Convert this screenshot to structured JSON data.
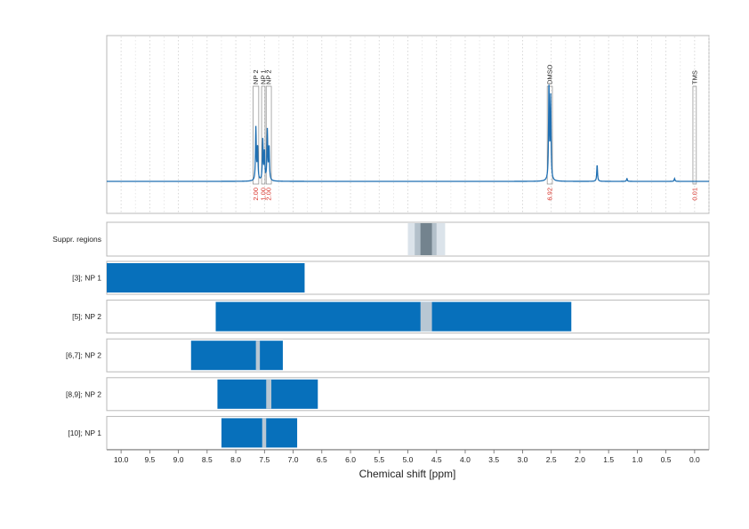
{
  "chart_data": {
    "type": "nmr-spectrum",
    "x_axis": {
      "label": "Chemical shift [ppm]",
      "range": [
        10.25,
        -0.25
      ],
      "ticks": [
        "10.0",
        "9.5",
        "9.0",
        "8.5",
        "8.0",
        "7.5",
        "7.0",
        "6.5",
        "6.0",
        "5.5",
        "5.0",
        "4.5",
        "4.0",
        "3.5",
        "3.0",
        "2.5",
        "2.0",
        "1.5",
        "1.0",
        "0.5",
        "0.0"
      ],
      "reversed": true
    },
    "spectrum": {
      "color": "#1f6fb2",
      "baseline": 0,
      "peaks": [
        {
          "ppm": 7.65,
          "height": 0.55
        },
        {
          "ppm": 7.62,
          "height": 0.35
        },
        {
          "ppm": 7.53,
          "height": 0.42
        },
        {
          "ppm": 7.5,
          "height": 0.3
        },
        {
          "ppm": 7.45,
          "height": 0.52
        },
        {
          "ppm": 7.42,
          "height": 0.35
        },
        {
          "ppm": 2.54,
          "height": 1.0
        },
        {
          "ppm": 2.51,
          "height": 0.85
        },
        {
          "ppm": 1.7,
          "height": 0.17
        },
        {
          "ppm": 1.18,
          "height": 0.03
        },
        {
          "ppm": 0.35,
          "height": 0.03
        }
      ]
    },
    "integrals": [
      {
        "label": "NP 2",
        "value": "2.00",
        "from": 7.7,
        "to": 7.6
      },
      {
        "label": "NP 1",
        "value": "1.00",
        "from": 7.55,
        "to": 7.49
      },
      {
        "label": "NP 2",
        "value": "2.00",
        "from": 7.47,
        "to": 7.38
      },
      {
        "label": "DMSO",
        "value": "6.92",
        "from": 2.57,
        "to": 2.48
      },
      {
        "label": "TMS",
        "value": "0.01",
        "from": 0.03,
        "to": -0.03
      }
    ],
    "suppression": {
      "label": "Suppr. regions",
      "bands": [
        {
          "from": 5.0,
          "to": 4.35,
          "shade": "#dbe3ea"
        },
        {
          "from": 4.88,
          "to": 4.5,
          "shade": "#b3c0ca"
        },
        {
          "from": 4.78,
          "to": 4.58,
          "shade": "#73838e"
        }
      ]
    },
    "regions": [
      {
        "label": "[3]; NP 1",
        "from": 10.25,
        "to": 6.8,
        "gaps": []
      },
      {
        "label": "[5]; NP 2",
        "from": 8.35,
        "to": 2.15,
        "gaps": [
          [
            4.78,
            4.58
          ]
        ]
      },
      {
        "label": "[6,7]; NP 2",
        "from": 8.78,
        "to": 7.18,
        "gaps": [
          [
            7.65,
            7.58
          ]
        ]
      },
      {
        "label": "[8,9]; NP 2",
        "from": 8.32,
        "to": 6.57,
        "gaps": [
          [
            7.47,
            7.38
          ]
        ]
      },
      {
        "label": "[10]; NP 1",
        "from": 8.25,
        "to": 6.93,
        "gaps": [
          [
            7.54,
            7.47
          ]
        ]
      }
    ],
    "bar_color": "#0770bb",
    "gap_color": "#b8c7d3",
    "integral_value_color": "#d9352c",
    "grid": true
  }
}
